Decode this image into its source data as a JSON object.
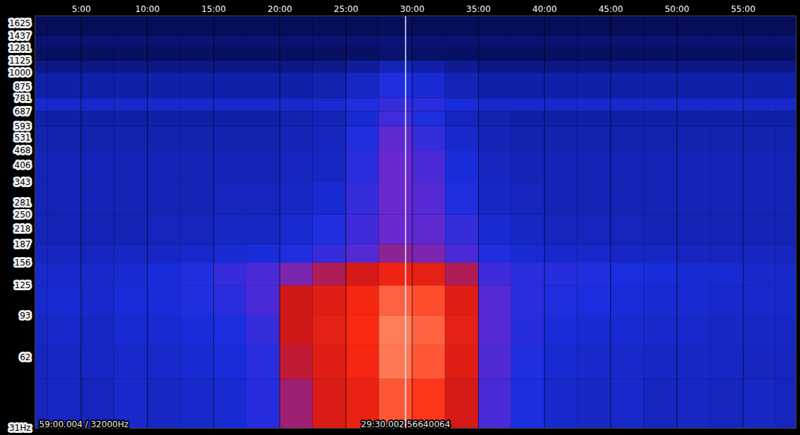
{
  "chart_data": {
    "type": "heatmap",
    "status": "59:00.004 / 32000Hz",
    "cursor": {
      "x": 29.5,
      "label": "29:30.002 56640064"
    },
    "log": "y",
    "grid": true,
    "xlim": [
      1.5,
      59
    ],
    "ylim": [
      31,
      1750
    ],
    "xticks": [
      {
        "value": 5,
        "label": "5:00"
      },
      {
        "value": 10,
        "label": "10:00"
      },
      {
        "value": 15,
        "label": "15:00"
      },
      {
        "value": 20,
        "label": "20:00"
      },
      {
        "value": 25,
        "label": "25:00"
      },
      {
        "value": 30,
        "label": "30:00"
      },
      {
        "value": 35,
        "label": "35:00"
      },
      {
        "value": 40,
        "label": "40:00"
      },
      {
        "value": 45,
        "label": "45:00"
      },
      {
        "value": 50,
        "label": "50:00"
      },
      {
        "value": 55,
        "label": "55:00"
      }
    ],
    "yticks": [
      1625,
      1437,
      1281,
      1125,
      1000,
      875,
      781,
      687,
      593,
      531,
      468,
      406,
      343,
      281,
      250,
      218,
      187,
      156,
      125,
      93,
      62,
      {
        "value": 31,
        "label": "31Hz"
      }
    ],
    "x_edges": [
      0,
      2.5,
      5,
      7.5,
      10,
      12.5,
      15,
      17.5,
      20,
      22.5,
      25,
      27.5,
      30,
      32.5,
      35,
      37.5,
      40,
      42.5,
      45,
      47.5,
      50,
      52.5,
      55,
      57.5,
      60
    ],
    "y_edges": [
      31,
      50,
      70,
      93,
      125,
      156,
      187,
      250,
      343,
      468,
      593,
      687,
      781,
      1000,
      1125,
      1281,
      1437,
      1750
    ],
    "color_scale": {
      "domain": [
        0,
        20,
        35,
        50,
        62,
        80,
        100
      ],
      "range": [
        "#00052a",
        "#0a1478",
        "#1a2ee0",
        "#6a28d0",
        "#d01818",
        "#ff2a10",
        "#ff9a70"
      ]
    },
    "cells": [
      [
        30,
        31,
        30,
        32,
        31,
        32,
        33,
        37,
        56,
        66,
        72,
        88,
        82,
        64,
        44,
        35,
        32,
        31,
        32,
        30,
        31,
        30,
        31,
        30
      ],
      [
        30,
        31,
        31,
        32,
        32,
        33,
        34,
        38,
        60,
        68,
        76,
        94,
        88,
        68,
        45,
        36,
        33,
        32,
        32,
        31,
        31,
        31,
        30,
        30
      ],
      [
        31,
        32,
        31,
        33,
        33,
        34,
        35,
        40,
        62,
        70,
        78,
        95,
        90,
        70,
        46,
        37,
        34,
        33,
        33,
        32,
        32,
        31,
        31,
        31
      ],
      [
        32,
        33,
        32,
        34,
        34,
        36,
        38,
        44,
        62,
        68,
        76,
        90,
        86,
        68,
        46,
        38,
        36,
        35,
        34,
        33,
        33,
        32,
        32,
        32
      ],
      [
        32,
        32,
        32,
        33,
        34,
        36,
        40,
        44,
        52,
        58,
        64,
        74,
        70,
        58,
        42,
        38,
        37,
        36,
        35,
        34,
        33,
        33,
        32,
        32
      ],
      [
        30,
        30,
        30,
        31,
        31,
        32,
        33,
        34,
        36,
        40,
        46,
        54,
        52,
        44,
        36,
        33,
        32,
        32,
        31,
        31,
        30,
        30,
        30,
        30
      ],
      [
        29,
        29,
        29,
        29,
        30,
        30,
        31,
        31,
        33,
        36,
        42,
        50,
        48,
        40,
        33,
        31,
        30,
        30,
        30,
        29,
        29,
        29,
        29,
        29
      ],
      [
        29,
        29,
        29,
        29,
        29,
        29,
        30,
        30,
        31,
        33,
        40,
        50,
        46,
        36,
        31,
        30,
        29,
        29,
        29,
        29,
        29,
        29,
        29,
        29
      ],
      [
        29,
        29,
        29,
        29,
        29,
        29,
        29,
        29,
        30,
        31,
        38,
        50,
        44,
        34,
        30,
        29,
        29,
        29,
        29,
        29,
        29,
        29,
        29,
        29
      ],
      [
        28,
        28,
        28,
        28,
        28,
        28,
        28,
        28,
        29,
        30,
        36,
        48,
        40,
        32,
        29,
        28,
        28,
        28,
        28,
        28,
        28,
        28,
        28,
        28
      ],
      [
        27,
        27,
        27,
        27,
        27,
        27,
        27,
        27,
        28,
        29,
        33,
        42,
        36,
        30,
        28,
        27,
        27,
        27,
        27,
        27,
        27,
        27,
        27,
        27
      ],
      [
        32,
        32,
        32,
        32,
        32,
        32,
        32,
        32,
        32,
        33,
        36,
        40,
        38,
        34,
        32,
        32,
        32,
        32,
        32,
        32,
        32,
        32,
        32,
        32
      ],
      [
        27,
        27,
        27,
        27,
        27,
        27,
        27,
        27,
        27,
        28,
        31,
        36,
        33,
        29,
        27,
        27,
        27,
        27,
        27,
        27,
        27,
        27,
        27,
        27
      ],
      [
        22,
        22,
        22,
        22,
        22,
        22,
        22,
        22,
        22,
        23,
        25,
        29,
        27,
        24,
        22,
        22,
        22,
        22,
        22,
        22,
        22,
        22,
        22,
        22
      ],
      [
        14,
        14,
        14,
        14,
        14,
        14,
        14,
        14,
        14,
        14,
        15,
        17,
        16,
        15,
        14,
        14,
        14,
        14,
        14,
        14,
        14,
        14,
        14,
        14
      ],
      [
        19,
        19,
        19,
        19,
        19,
        19,
        19,
        19,
        19,
        19,
        19,
        20,
        19,
        19,
        19,
        19,
        19,
        19,
        19,
        19,
        19,
        19,
        19,
        19
      ],
      [
        12,
        12,
        12,
        12,
        12,
        12,
        12,
        12,
        12,
        12,
        12,
        13,
        12,
        12,
        12,
        12,
        12,
        12,
        12,
        12,
        12,
        12,
        12,
        12
      ]
    ]
  }
}
